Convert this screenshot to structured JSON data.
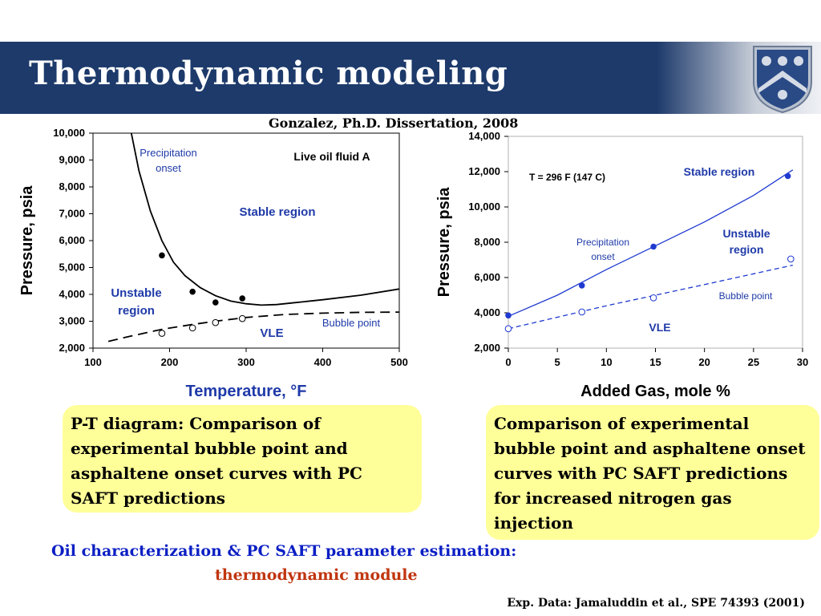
{
  "slide": {
    "title": "Thermodynamic modeling",
    "citation": "Gonzalez, Ph.D. Dissertation, 2008",
    "callout_left": "P-T diagram: Comparison of experimental bubble point and asphaltene onset curves with PC SAFT predictions",
    "callout_right": "Comparison of experimental bubble point and asphaltene onset curves with PC SAFT predictions for increased nitrogen gas injection",
    "footer_main": "Oil characterization & PC SAFT parameter estimation:",
    "footer_sub": "thermodynamic module",
    "footer_ref": "Exp. Data: Jamaluddin et al., SPE 74393 (2001)",
    "logo_icon": "university-shield-icon",
    "colors": {
      "title_bar": "#1d3a6b",
      "callout": "#ffff99",
      "footer_main": "#0b1fc4",
      "footer_sub": "#c0350f",
      "region_label": "#1f3aa8"
    }
  },
  "chart_data": [
    {
      "type": "scatter",
      "xlabel": "Temperature, °F",
      "ylabel": "Pressure, psia",
      "xlim": [
        100,
        500
      ],
      "ylim": [
        2000,
        10000
      ],
      "x_ticks": [
        "100",
        "200",
        "300",
        "400",
        "500"
      ],
      "y_ticks": [
        "2,000",
        "3,000",
        "4,000",
        "5,000",
        "6,000",
        "7,000",
        "8,000",
        "9,000",
        "10,000"
      ],
      "grid": false,
      "annotations": {
        "top_right": "Live oil fluid A",
        "precip": [
          "Precipitation",
          "onset"
        ],
        "stable": "Stable region",
        "unstable": [
          "Unstable",
          "region"
        ],
        "vle": "VLE",
        "bubble": "Bubble point"
      },
      "series": [
        {
          "style": "filled-points",
          "x": [
            190,
            230,
            260,
            295
          ],
          "y": [
            5450,
            4100,
            3700,
            3850
          ]
        },
        {
          "style": "open-points",
          "x": [
            190,
            230,
            260,
            295
          ],
          "y": [
            2550,
            2750,
            2950,
            3100
          ]
        },
        {
          "style": "solid-curve",
          "x": [
            150,
            160,
            175,
            190,
            205,
            220,
            240,
            260,
            280,
            300,
            320,
            340,
            360,
            400,
            450,
            500
          ],
          "y": [
            10000,
            8600,
            7100,
            6000,
            5200,
            4700,
            4250,
            3950,
            3750,
            3650,
            3600,
            3620,
            3680,
            3800,
            3970,
            4200
          ]
        },
        {
          "style": "dashed-curve",
          "x": [
            120,
            150,
            190,
            230,
            260,
            300,
            350,
            400,
            450,
            500
          ],
          "y": [
            2250,
            2450,
            2700,
            2880,
            3000,
            3140,
            3250,
            3300,
            3330,
            3340
          ]
        }
      ]
    },
    {
      "type": "scatter",
      "xlabel": "Added Gas, mole %",
      "ylabel": "Pressure, psia",
      "xlim": [
        0,
        30
      ],
      "ylim": [
        2000,
        14000
      ],
      "x_ticks": [
        "0",
        "5",
        "10",
        "15",
        "20",
        "25",
        "30"
      ],
      "y_ticks": [
        "2,000",
        "4,000",
        "6,000",
        "8,000",
        "10,000",
        "12,000",
        "14,000"
      ],
      "grid": false,
      "annotations": {
        "temp": "T = 296 F (147 C)",
        "stable": "Stable region",
        "unstable": [
          "Unstable",
          "region"
        ],
        "precip": [
          "Precipitation",
          "onset"
        ],
        "bubble": "Bubble point",
        "vle": "VLE"
      },
      "series": [
        {
          "style": "filled-points",
          "x": [
            0,
            7.5,
            14.8,
            28.5
          ],
          "y": [
            3850,
            5550,
            7750,
            11750
          ]
        },
        {
          "style": "open-points",
          "x": [
            0,
            7.5,
            14.8,
            28.8
          ],
          "y": [
            3100,
            4050,
            4850,
            7050
          ]
        },
        {
          "style": "solid-curve",
          "x": [
            0,
            5,
            10,
            15,
            20,
            25,
            29
          ],
          "y": [
            3800,
            5000,
            6450,
            7800,
            9150,
            10650,
            12100
          ]
        },
        {
          "style": "dashed-curve",
          "x": [
            0,
            10,
            20,
            29
          ],
          "y": [
            3100,
            4400,
            5600,
            6700
          ]
        }
      ]
    }
  ]
}
